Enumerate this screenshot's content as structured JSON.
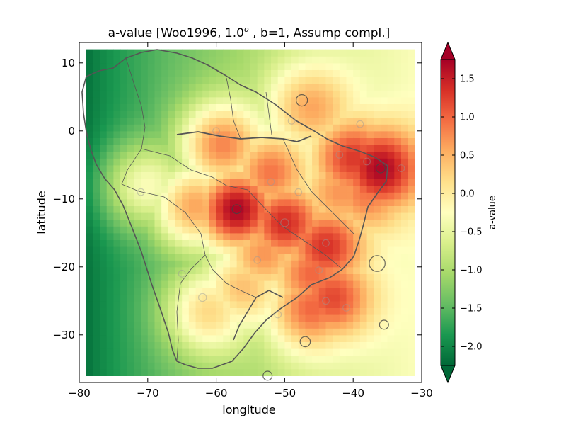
{
  "chart_data": {
    "type": "heatmap",
    "title": "a-value [Woo1996, 1.0",
    "title_degree": "o",
    "title_rest": " , b=1, Assump compl.]",
    "xlabel": "longitude",
    "ylabel": "latitude",
    "xlim": [
      -80,
      -30
    ],
    "ylim": [
      -37,
      13
    ],
    "x_ticks": [
      -80,
      -70,
      -60,
      -50,
      -40,
      -30
    ],
    "y_ticks": [
      10,
      0,
      -10,
      -20,
      -30
    ],
    "x_tick_labels": [
      "−80",
      "−70",
      "−60",
      "−50",
      "−40",
      "−30"
    ],
    "y_tick_labels": [
      "10",
      "0",
      "−10",
      "−20",
      "−30"
    ],
    "grid_extent": {
      "lon": [
        -79,
        -31
      ],
      "lat": [
        -36,
        12
      ]
    },
    "grid_cell_deg": 1.0,
    "colormap": "RdYlGn_r",
    "colormap_colors": [
      "#006837",
      "#1a9850",
      "#66bd63",
      "#a6d96a",
      "#d9ef8b",
      "#ffffbf",
      "#fee08b",
      "#fdae61",
      "#f46d43",
      "#d73027",
      "#a50026"
    ],
    "colorbar": {
      "label": "a-value",
      "range": [
        -2.25,
        1.75
      ],
      "ticks": [
        1.5,
        1.0,
        0.5,
        0.0,
        -0.5,
        -1.0,
        -1.5,
        -2.0
      ],
      "tick_labels": [
        "1.5",
        "1.0",
        "0.5",
        "0.0",
        "−0.5",
        "−1.0",
        "−1.5",
        "−2.0"
      ],
      "extend": "both"
    },
    "base_field": {
      "value": -1.0,
      "west_value": -2.2,
      "east_value": -0.3
    },
    "hotspots": [
      {
        "lon": -57,
        "lat": -11.5,
        "a": 1.7
      },
      {
        "lon": -36,
        "lat": -5.5,
        "a": 1.7
      },
      {
        "lon": -40,
        "lat": -4.0,
        "a": 1.3
      },
      {
        "lon": -50,
        "lat": -13.5,
        "a": 1.4
      },
      {
        "lon": -44,
        "lat": -17.0,
        "a": 1.35
      },
      {
        "lon": -46,
        "lat": -21.0,
        "a": 1.0
      },
      {
        "lon": -43,
        "lat": -24.5,
        "a": 1.2
      },
      {
        "lon": -46,
        "lat": -26.0,
        "a": 1.0
      },
      {
        "lon": -52,
        "lat": -6.0,
        "a": 0.9
      },
      {
        "lon": -59,
        "lat": -2.0,
        "a": 0.8
      },
      {
        "lon": -63,
        "lat": -11.0,
        "a": 0.6
      },
      {
        "lon": -53,
        "lat": -18.0,
        "a": 0.7
      },
      {
        "lon": -56,
        "lat": -23.0,
        "a": 0.4
      },
      {
        "lon": -61,
        "lat": -26.5,
        "a": 0.2
      },
      {
        "lon": -46,
        "lat": 3.5,
        "a": 0.6
      },
      {
        "lon": -42,
        "lat": -9.0,
        "a": 0.7
      },
      {
        "lon": -38,
        "lat": -9.0,
        "a": 0.9
      },
      {
        "lon": -70,
        "lat": -8.0,
        "a": -0.3
      }
    ],
    "events": [
      {
        "lon": -57,
        "lat": -11.5,
        "mag": 4
      },
      {
        "lon": -36,
        "lat": -5.5,
        "mag": 4
      },
      {
        "lon": -38,
        "lat": -4.5,
        "mag": 3
      },
      {
        "lon": -50,
        "lat": -13.5,
        "mag": 3.5
      },
      {
        "lon": -44,
        "lat": -16.5,
        "mag": 3
      },
      {
        "lon": -45,
        "lat": -20.5,
        "mag": 3
      },
      {
        "lon": -44,
        "lat": -25.0,
        "mag": 3
      },
      {
        "lon": -47.5,
        "lat": 4.5,
        "mag": 5
      },
      {
        "lon": -36.5,
        "lat": -19.5,
        "mag": 7
      },
      {
        "lon": -35.5,
        "lat": -28.5,
        "mag": 4
      },
      {
        "lon": -47,
        "lat": -31.0,
        "mag": 4.5
      },
      {
        "lon": -52.5,
        "lat": -36.0,
        "mag": 4
      },
      {
        "lon": -41,
        "lat": -26.0,
        "mag": 3
      },
      {
        "lon": -51,
        "lat": -27.0,
        "mag": 3
      },
      {
        "lon": -60,
        "lat": 0.0,
        "mag": 3
      },
      {
        "lon": -52,
        "lat": -7.5,
        "mag": 3
      },
      {
        "lon": -48,
        "lat": -9.0,
        "mag": 3
      },
      {
        "lon": -62,
        "lat": -24.5,
        "mag": 3.5
      },
      {
        "lon": -54,
        "lat": -19.0,
        "mag": 3
      },
      {
        "lon": -42,
        "lat": -3.5,
        "mag": 3
      },
      {
        "lon": -33,
        "lat": -5.5,
        "mag": 3
      },
      {
        "lon": -39,
        "lat": 1.0,
        "mag": 3
      },
      {
        "lon": -49,
        "lat": 1.5,
        "mag": 3
      },
      {
        "lon": -65,
        "lat": -21.0,
        "mag": 3
      },
      {
        "lon": -71,
        "lat": -9.0,
        "mag": 3
      }
    ]
  }
}
